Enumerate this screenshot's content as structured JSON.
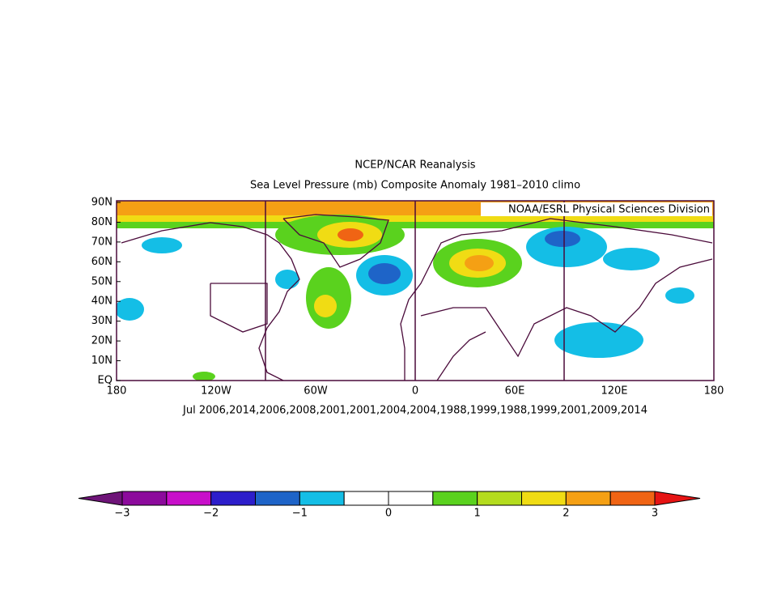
{
  "header": {
    "title": "NCEP/NCAR Reanalysis",
    "subtitle": "Sea Level Pressure (mb) Composite Anomaly 1981–2010 climo"
  },
  "credit": "NOAA/ESRL Physical Sciences Division",
  "lat_labels": [
    "90N",
    "80N",
    "70N",
    "60N",
    "50N",
    "40N",
    "30N",
    "20N",
    "10N",
    "EQ"
  ],
  "lon_labels": [
    "180",
    "120W",
    "60W",
    "0",
    "60E",
    "120E",
    "180"
  ],
  "footer": "Jul 2006,2014,2006,2008,2001,2001,2004,2004,1988,1999,1988,1999,2001,2009,2014",
  "colorbar": {
    "labels": [
      "−3",
      "−2",
      "−1",
      "0",
      "1",
      "2",
      "3"
    ],
    "low_color": "#6e1478",
    "colors": [
      "#8c0a9c",
      "#c80fca",
      "#2d1ecb",
      "#1e64c8",
      "#14bee6",
      "#ffffff",
      "#ffffff",
      "#5ad21e",
      "#b4dc1e",
      "#f0dc14",
      "#f5a014",
      "#f06414"
    ],
    "high_color": "#e61414"
  }
}
